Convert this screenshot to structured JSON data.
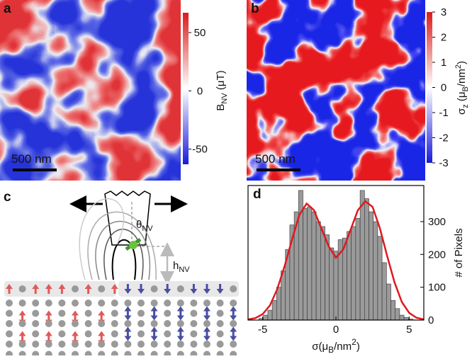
{
  "panels": {
    "a": {
      "label": "a",
      "scale_bar": "500 nm",
      "colorbar": {
        "title": {
          "main": "B",
          "sub": "NV",
          "after": " (μT)"
        },
        "lim": [
          -63,
          67
        ],
        "ticks": [
          50,
          0,
          -50
        ]
      }
    },
    "b": {
      "label": "b",
      "scale_bar": "500 nm",
      "colorbar": {
        "title": {
          "main": "σ",
          "sub": "z",
          "after": " (μ",
          "sub2": "B",
          "after2": "/nm",
          "sup": "2",
          "end": ")"
        },
        "lim": [
          -3,
          3
        ],
        "ticks": [
          3,
          2,
          1,
          0,
          -1,
          -2,
          -3
        ]
      }
    },
    "c": {
      "label": "c",
      "theta": {
        "main": "θ",
        "sub": "NV"
      },
      "height": {
        "main": "h",
        "sub": "NV"
      }
    }
  },
  "chart_data": {
    "type": "histogram",
    "label": "d",
    "xlabel": {
      "main": "σ(μ",
      "sub": "B",
      "after": "/nm",
      "sup": "2",
      "end": ")"
    },
    "ylabel": "# of Pixels",
    "bins": [
      -5.25,
      -4.95,
      -4.65,
      -4.35,
      -4.05,
      -3.75,
      -3.45,
      -3.15,
      -2.85,
      -2.55,
      -2.25,
      -1.95,
      -1.65,
      -1.35,
      -1.05,
      -0.75,
      -0.45,
      -0.15,
      0.15,
      0.45,
      0.75,
      1.05,
      1.35,
      1.65,
      1.95,
      2.25,
      2.55,
      2.85,
      3.15,
      3.45,
      3.75,
      4.05,
      4.35,
      4.65,
      4.95,
      5.25
    ],
    "values": [
      5,
      15,
      30,
      60,
      100,
      150,
      215,
      290,
      330,
      395,
      340,
      345,
      330,
      300,
      285,
      260,
      220,
      210,
      245,
      250,
      270,
      285,
      310,
      395,
      370,
      330,
      300,
      255,
      175,
      110,
      60,
      35,
      15,
      8,
      3
    ],
    "color": "#9a9a9a",
    "fit": {
      "color": "#e0181e",
      "x": [
        -6,
        -5.5,
        -5,
        -4.5,
        -4,
        -3.5,
        -3,
        -2.5,
        -2,
        -1.5,
        -1,
        -0.5,
        0,
        0.5,
        1,
        1.5,
        2,
        2.5,
        3,
        3.5,
        4,
        4.5,
        5,
        5.5,
        6
      ],
      "values": [
        2,
        6,
        18,
        45,
        95,
        165,
        245,
        320,
        355,
        335,
        280,
        225,
        190,
        215,
        275,
        335,
        362,
        345,
        280,
        195,
        115,
        55,
        22,
        7,
        2
      ]
    },
    "xlim": [
      -6,
      6
    ],
    "xticks": [
      -5,
      0,
      5
    ],
    "ylim": [
      0,
      410
    ],
    "yticks": [
      0,
      100,
      200,
      300
    ]
  }
}
